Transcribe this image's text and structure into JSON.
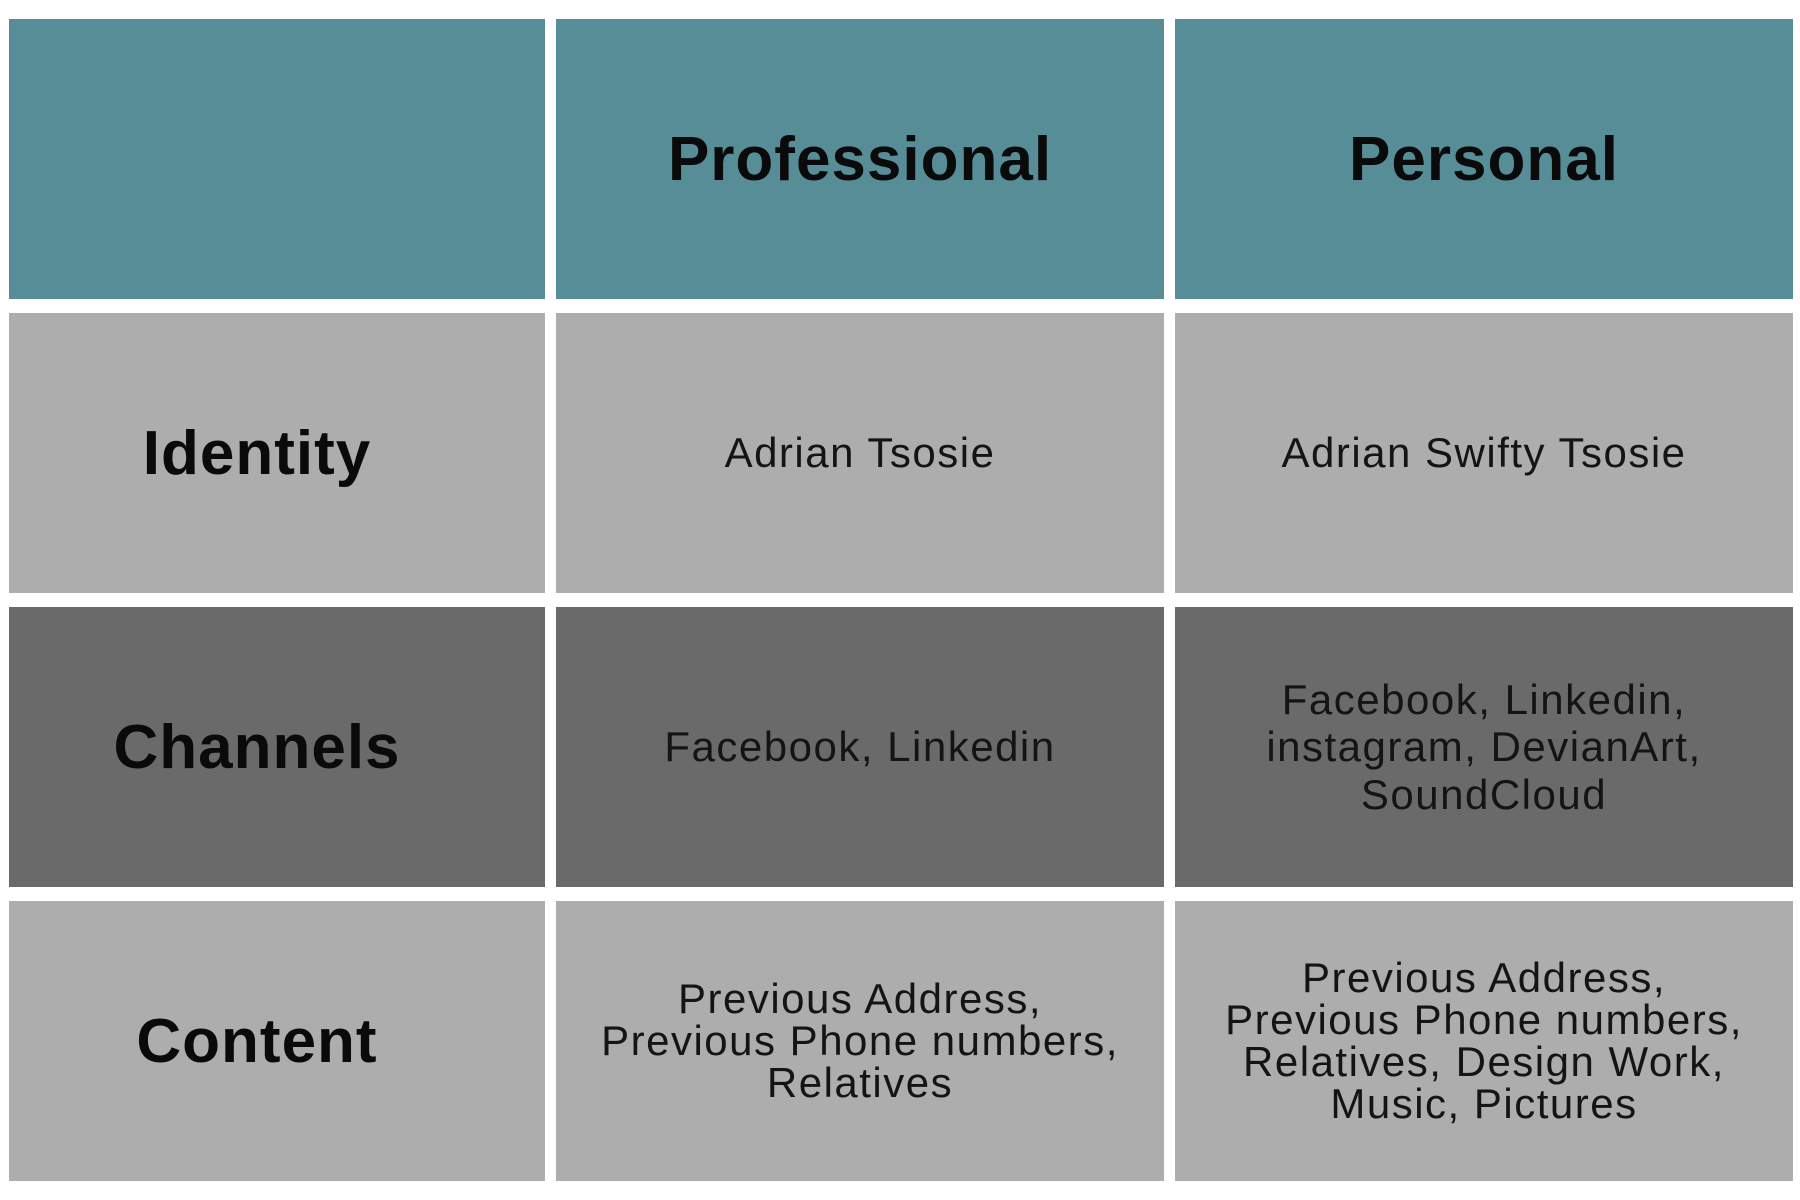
{
  "table": {
    "columns": [
      "",
      "Professional",
      "Personal"
    ],
    "rows": [
      {
        "label": "Identity",
        "professional": "Adrian Tsosie",
        "personal": "Adrian Swifty Tsosie"
      },
      {
        "label": "Channels",
        "professional": "Facebook, Linkedin",
        "personal": "Facebook, Linkedin,\ninstagram, DevianArt,\nSoundCloud"
      },
      {
        "label": "Content",
        "professional": "Previous Address,\nPrevious Phone numbers,\nRelatives",
        "personal": "Previous Address,\nPrevious Phone numbers,\nRelatives, Design Work,\nMusic, Pictures"
      }
    ]
  },
  "colors": {
    "header": "#578d96",
    "light_row": "#adadad",
    "dark_row": "#6a6a6a"
  }
}
